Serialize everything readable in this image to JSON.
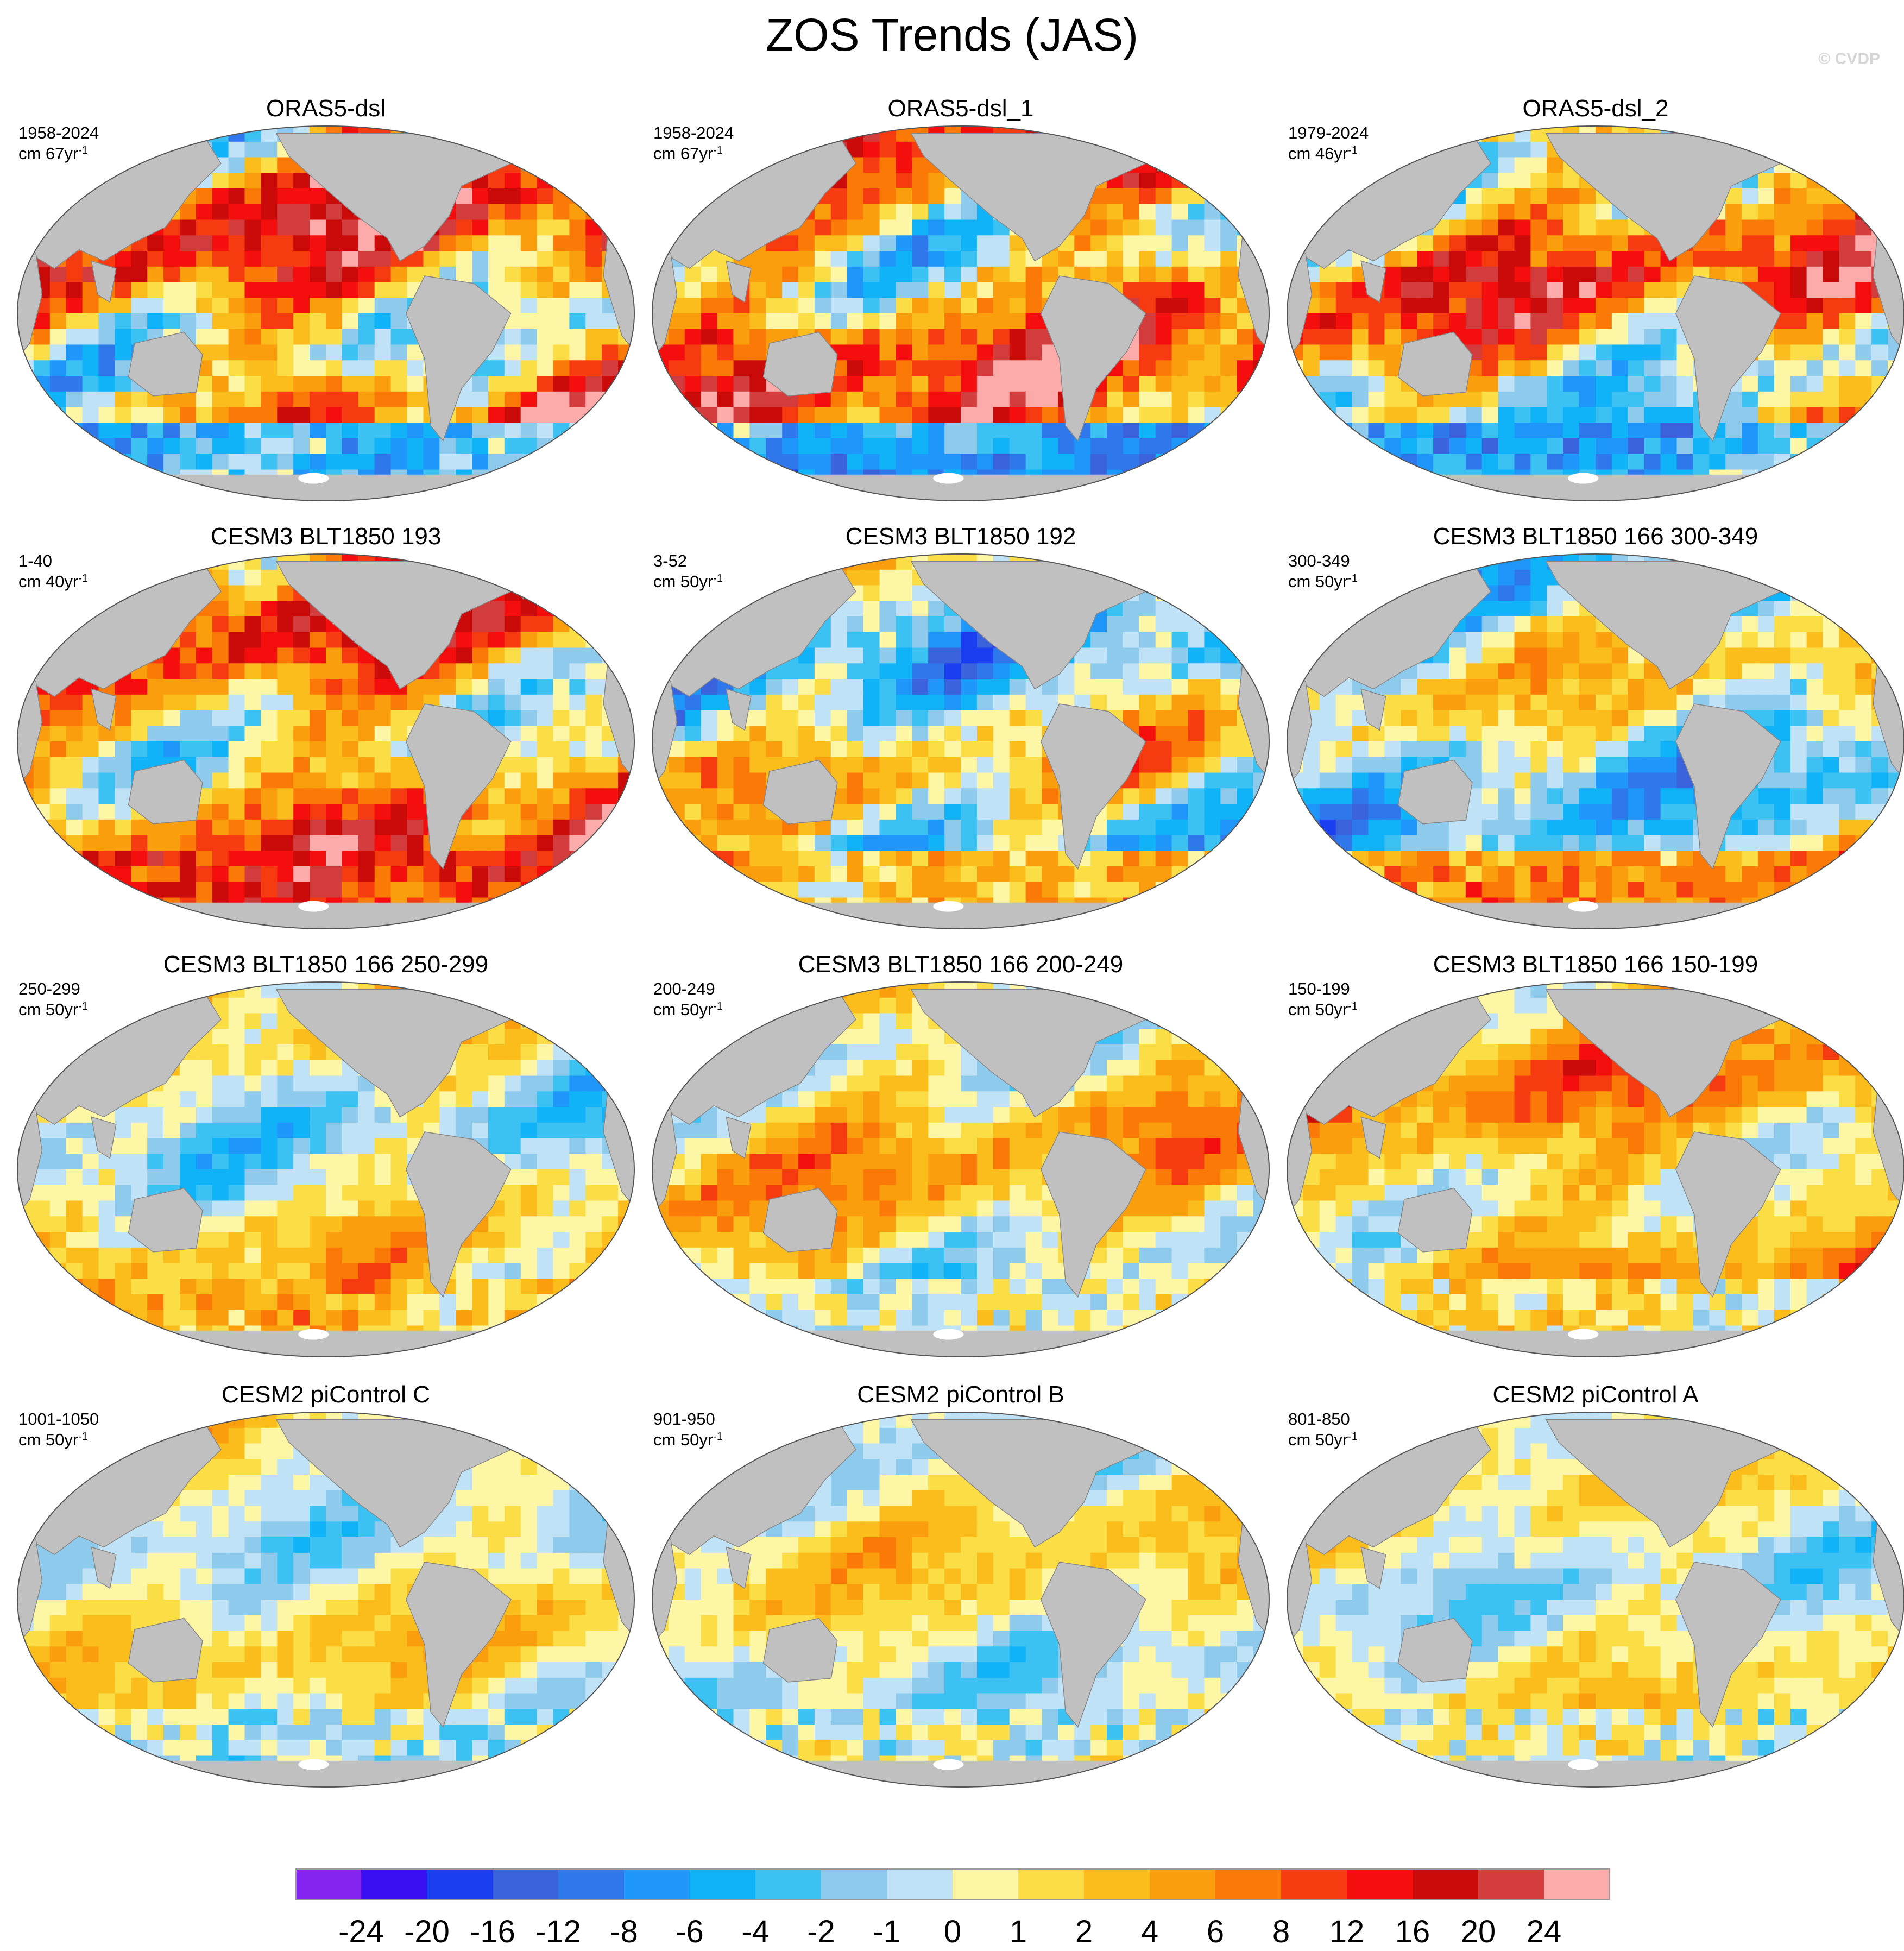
{
  "title": "ZOS Trends (JAS)",
  "watermark": "© CVDP",
  "units": "cm",
  "colorbar": {
    "labels": [
      "-24",
      "-20",
      "-16",
      "-12",
      "-8",
      "-6",
      "-4",
      "-2",
      "-1",
      "0",
      "1",
      "2",
      "4",
      "6",
      "8",
      "12",
      "16",
      "20",
      "24"
    ],
    "colors": [
      "#8424f0",
      "#3a10f2",
      "#1a3ef0",
      "#3a62dd",
      "#2f78ec",
      "#1e96fa",
      "#10b3f8",
      "#3cc1f3",
      "#8ecaec",
      "#bfe2f7",
      "#fdf6a4",
      "#fbdd45",
      "#fbbd1c",
      "#fb9e0d",
      "#fb7a07",
      "#f73b11",
      "#f50e0e",
      "#cb0a0a",
      "#d23c3c",
      "#fcaaaa"
    ]
  },
  "panels": [
    {
      "title": "ORAS5-dsl",
      "period": "1958-2024",
      "units_label": "cm 67yr",
      "units_exp": "-1"
    },
    {
      "title": "ORAS5-dsl_1",
      "period": "1958-2024",
      "units_label": "cm 67yr",
      "units_exp": "-1"
    },
    {
      "title": "ORAS5-dsl_2",
      "period": "1979-2024",
      "units_label": "cm 46yr",
      "units_exp": "-1"
    },
    {
      "title": "CESM3 BLT1850 193",
      "period": "1-40",
      "units_label": "cm 40yr",
      "units_exp": "-1"
    },
    {
      "title": "CESM3 BLT1850 192",
      "period": "3-52",
      "units_label": "cm 50yr",
      "units_exp": "-1"
    },
    {
      "title": "CESM3 BLT1850 166 300-349",
      "period": "300-349",
      "units_label": "cm 50yr",
      "units_exp": "-1"
    },
    {
      "title": "CESM3 BLT1850 166 250-299",
      "period": "250-299",
      "units_label": "cm 50yr",
      "units_exp": "-1"
    },
    {
      "title": "CESM3 BLT1850 166 200-249",
      "period": "200-249",
      "units_label": "cm 50yr",
      "units_exp": "-1"
    },
    {
      "title": "CESM3 BLT1850 166 150-199",
      "period": "150-199",
      "units_label": "cm 50yr",
      "units_exp": "-1"
    },
    {
      "title": "CESM2 piControl C",
      "period": "1001-1050",
      "units_label": "cm 50yr",
      "units_exp": "-1"
    },
    {
      "title": "CESM2 piControl B",
      "period": "901-950",
      "units_label": "cm 50yr",
      "units_exp": "-1"
    },
    {
      "title": "CESM2 piControl A",
      "period": "801-850",
      "units_label": "cm 50yr",
      "units_exp": "-1"
    }
  ],
  "map_colors": {
    "land": "#c0c0c0",
    "ice": "#ffffff",
    "outline": "#555555"
  }
}
